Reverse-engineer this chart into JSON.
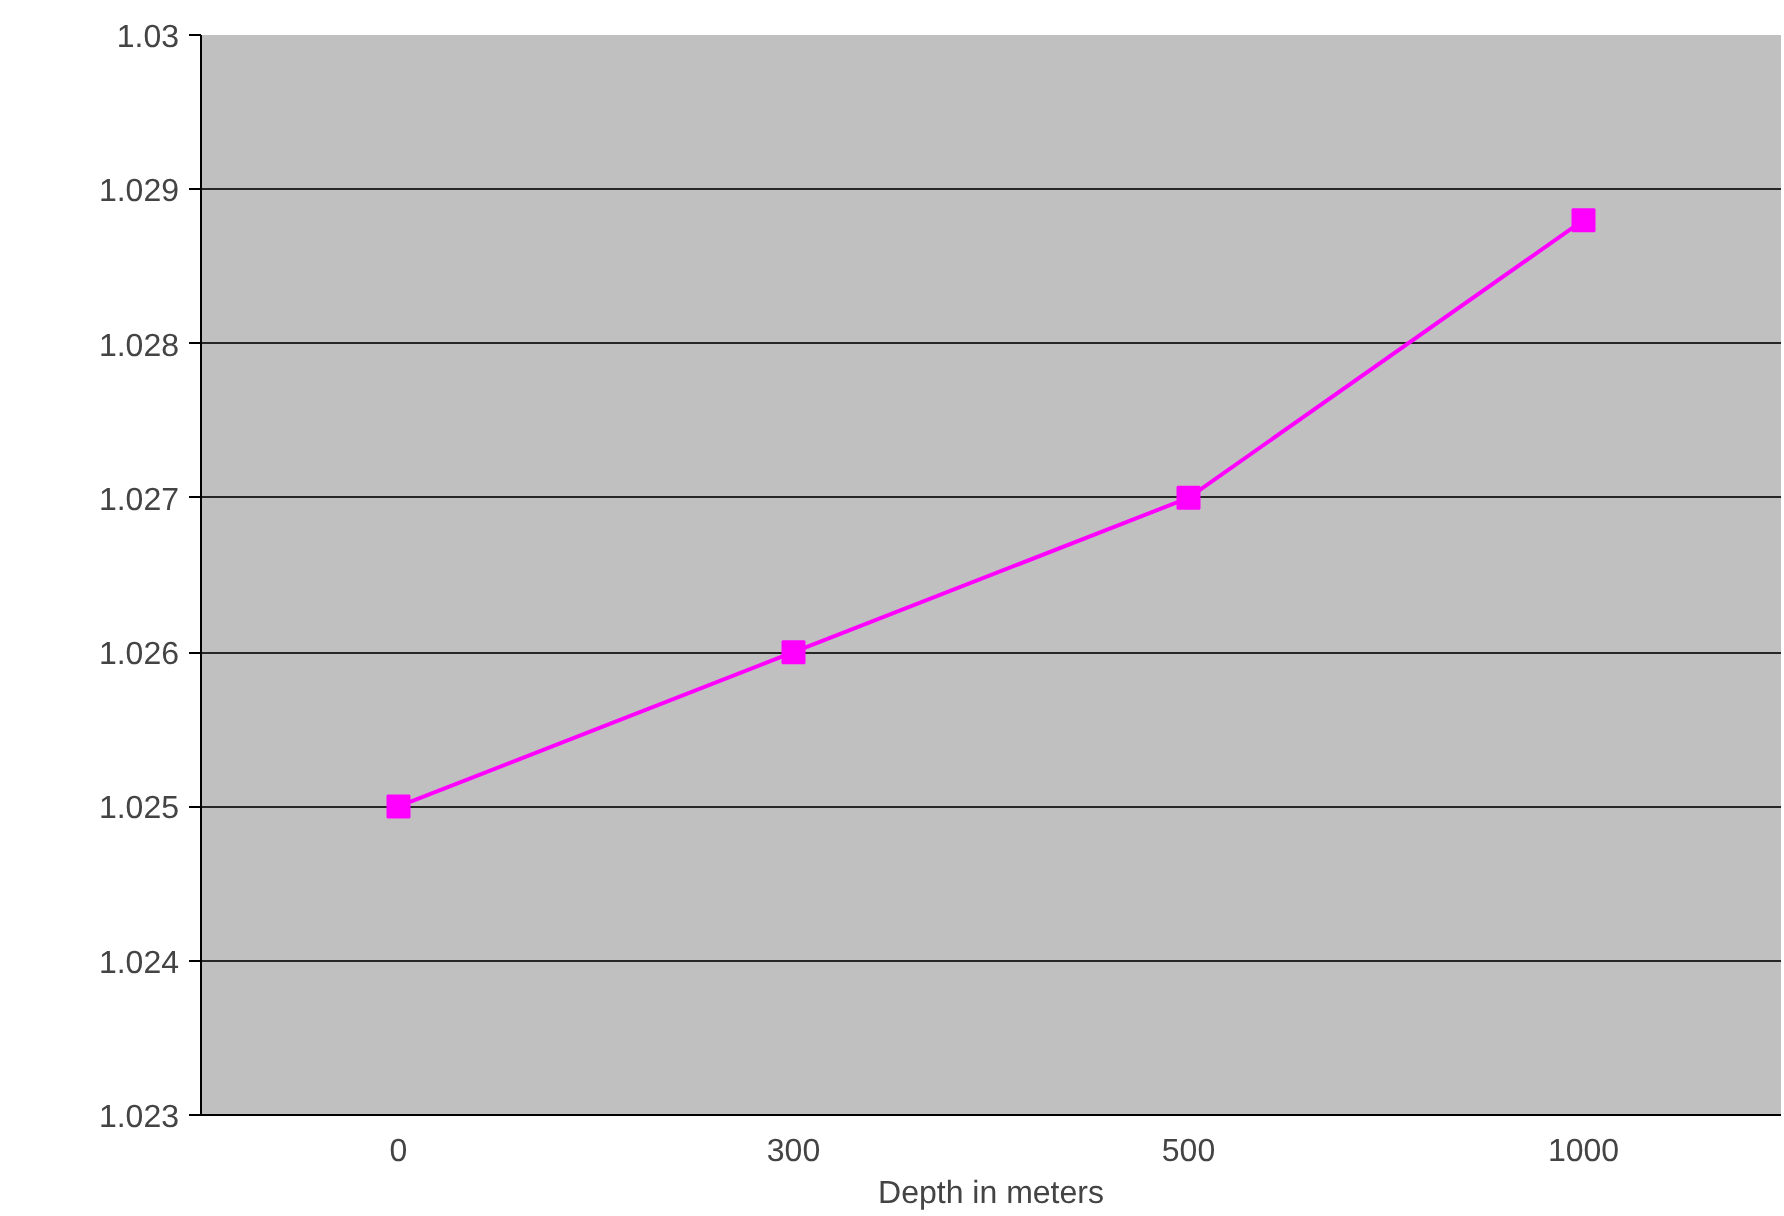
{
  "chart_data": {
    "type": "line",
    "xlabel": "Depth in meters",
    "categories": [
      "0",
      "300",
      "500",
      "1000"
    ],
    "series": [
      {
        "color": "#ff00ff",
        "values": [
          1.025,
          1.026,
          1.027,
          1.0288
        ]
      }
    ],
    "ylim": [
      1.023,
      1.03
    ],
    "yticks": [
      1.023,
      1.024,
      1.025,
      1.026,
      1.027,
      1.028,
      1.029,
      1.03
    ],
    "grid": "y",
    "marker": "square",
    "line_style": "solid"
  }
}
